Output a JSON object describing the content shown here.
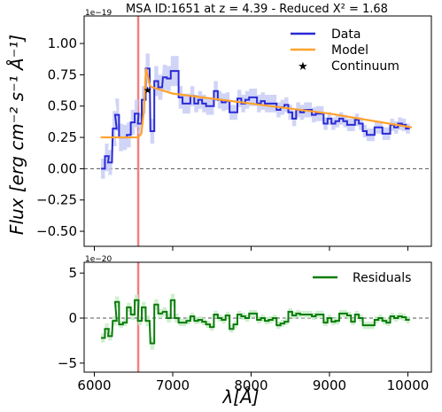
{
  "figure": {
    "title": "MSA ID:1651 at z = 4.39 - Reduced X² = 1.68",
    "xlabel": "λ[Å]",
    "top_ylabel": "Flux [erg cm⁻² s⁻¹ Å⁻¹]",
    "top_offset": "1e−19",
    "bottom_offset": "1e−20"
  },
  "colors": {
    "data": "#2a2ad6",
    "model": "#ffa22e",
    "residuals": "#0a7d0a",
    "line_marker": "#f08080",
    "zero": "#555555",
    "data_band": "#c8ccf5",
    "resid_band": "#c8ecc8"
  },
  "chart_data": [
    {
      "type": "line",
      "panel": "spectrum",
      "title": "MSA ID:1651 at z = 4.39 - Reduced X² = 1.68",
      "xlabel": "",
      "ylabel": "Flux [erg cm⁻² s⁻¹ Å⁻¹]",
      "xlim": [
        5870,
        10300
      ],
      "ylim": [
        -0.62,
        1.22
      ],
      "xticks": [
        6000,
        7000,
        8000,
        9000,
        10000
      ],
      "yticks": [
        -0.5,
        -0.25,
        0.0,
        0.25,
        0.5,
        0.75,
        1.0
      ],
      "ytick_labels": [
        "−0.50",
        "−0.25",
        "0.00",
        "0.25",
        "0.50",
        "0.75",
        "1.00"
      ],
      "vline_x": 6560,
      "hline_y": 0,
      "legend": {
        "placement": "top-right",
        "entries": [
          "Data",
          "Model",
          "Continuum"
        ]
      },
      "series": [
        {
          "name": "Data",
          "style": "step",
          "x": [
            6110,
            6160,
            6200,
            6260,
            6290,
            6340,
            6390,
            6440,
            6490,
            6540,
            6580,
            6630,
            6680,
            6740,
            6790,
            6840,
            6900,
            6950,
            7000,
            7050,
            7100,
            7150,
            7200,
            7250,
            7300,
            7350,
            7400,
            7450,
            7500,
            7550,
            7600,
            7650,
            7700,
            7750,
            7800,
            7850,
            7900,
            7950,
            8000,
            8050,
            8100,
            8150,
            8200,
            8250,
            8300,
            8350,
            8400,
            8450,
            8500,
            8550,
            8600,
            8650,
            8700,
            8750,
            8800,
            8850,
            8900,
            8950,
            9000,
            9050,
            9100,
            9150,
            9200,
            9250,
            9300,
            9350,
            9400,
            9450,
            9500,
            9550,
            9600,
            9650,
            9700,
            9750,
            9800,
            9850,
            9900,
            9950,
            10000
          ],
          "y": [
            0.0,
            0.1,
            0.05,
            0.32,
            0.43,
            0.25,
            0.25,
            0.27,
            0.37,
            0.44,
            0.36,
            0.55,
            0.8,
            0.3,
            0.7,
            0.65,
            0.73,
            0.72,
            0.78,
            0.78,
            0.57,
            0.52,
            0.52,
            0.58,
            0.52,
            0.55,
            0.52,
            0.5,
            0.5,
            0.62,
            0.55,
            0.53,
            0.54,
            0.45,
            0.45,
            0.56,
            0.52,
            0.55,
            0.57,
            0.57,
            0.52,
            0.54,
            0.52,
            0.52,
            0.52,
            0.47,
            0.49,
            0.51,
            0.45,
            0.4,
            0.47,
            0.45,
            0.47,
            0.47,
            0.43,
            0.44,
            0.44,
            0.36,
            0.4,
            0.36,
            0.38,
            0.4,
            0.38,
            0.35,
            0.35,
            0.39,
            0.36,
            0.3,
            0.27,
            0.27,
            0.33,
            0.33,
            0.28,
            0.28,
            0.35,
            0.33,
            0.36,
            0.35,
            0.32
          ],
          "y_lower": [
            -0.08,
            -0.02,
            -0.05,
            0.18,
            0.3,
            0.14,
            0.15,
            0.17,
            0.27,
            0.33,
            0.28,
            0.44,
            0.68,
            0.2,
            0.58,
            0.55,
            0.63,
            0.62,
            0.66,
            0.66,
            0.48,
            0.44,
            0.44,
            0.5,
            0.45,
            0.48,
            0.45,
            0.43,
            0.43,
            0.54,
            0.48,
            0.46,
            0.47,
            0.39,
            0.39,
            0.49,
            0.45,
            0.48,
            0.5,
            0.5,
            0.45,
            0.47,
            0.45,
            0.45,
            0.45,
            0.41,
            0.43,
            0.45,
            0.39,
            0.34,
            0.41,
            0.39,
            0.41,
            0.41,
            0.37,
            0.38,
            0.38,
            0.31,
            0.35,
            0.31,
            0.33,
            0.35,
            0.33,
            0.3,
            0.3,
            0.34,
            0.31,
            0.25,
            0.22,
            0.22,
            0.28,
            0.28,
            0.23,
            0.23,
            0.3,
            0.28,
            0.31,
            0.3,
            0.28
          ],
          "y_upper": [
            0.08,
            0.2,
            0.15,
            0.46,
            0.56,
            0.36,
            0.35,
            0.37,
            0.47,
            0.55,
            0.44,
            0.66,
            0.92,
            0.4,
            0.82,
            0.75,
            0.83,
            0.82,
            0.9,
            0.9,
            0.66,
            0.6,
            0.6,
            0.66,
            0.59,
            0.62,
            0.59,
            0.57,
            0.57,
            0.7,
            0.62,
            0.6,
            0.61,
            0.51,
            0.51,
            0.63,
            0.59,
            0.62,
            0.64,
            0.64,
            0.59,
            0.61,
            0.59,
            0.59,
            0.59,
            0.53,
            0.55,
            0.57,
            0.51,
            0.46,
            0.53,
            0.51,
            0.53,
            0.53,
            0.49,
            0.5,
            0.5,
            0.41,
            0.45,
            0.41,
            0.43,
            0.45,
            0.43,
            0.4,
            0.4,
            0.44,
            0.41,
            0.35,
            0.32,
            0.32,
            0.38,
            0.38,
            0.33,
            0.33,
            0.4,
            0.38,
            0.41,
            0.4,
            0.36
          ]
        },
        {
          "name": "Model",
          "style": "line",
          "x": [
            6080,
            6560,
            6600,
            6630,
            6660,
            6690,
            6710,
            6740,
            7000,
            8000,
            9000,
            10050
          ],
          "y": [
            0.25,
            0.25,
            0.28,
            0.45,
            0.8,
            0.72,
            0.66,
            0.65,
            0.6,
            0.52,
            0.44,
            0.33
          ]
        },
        {
          "name": "Continuum",
          "style": "marker",
          "x": [
            6680
          ],
          "y": [
            0.63
          ]
        }
      ]
    },
    {
      "type": "line",
      "panel": "residuals",
      "xlabel": "λ[Å]",
      "ylabel": "",
      "xlim": [
        5870,
        10300
      ],
      "ylim": [
        -6.0,
        6.2
      ],
      "xticks": [
        6000,
        7000,
        8000,
        9000,
        10000
      ],
      "yticks": [
        -5,
        0,
        5
      ],
      "ytick_labels": [
        "−5",
        "0",
        "5"
      ],
      "vline_x": 6560,
      "hline_y": 0,
      "legend": {
        "placement": "top-right",
        "entries": [
          "Residuals"
        ]
      },
      "series": [
        {
          "name": "Residuals",
          "style": "step",
          "x": [
            6110,
            6160,
            6200,
            6260,
            6290,
            6340,
            6390,
            6440,
            6490,
            6540,
            6580,
            6630,
            6680,
            6740,
            6790,
            6840,
            6900,
            6950,
            7000,
            7050,
            7100,
            7150,
            7200,
            7250,
            7300,
            7350,
            7400,
            7450,
            7500,
            7550,
            7600,
            7650,
            7700,
            7750,
            7800,
            7850,
            7900,
            7950,
            8000,
            8050,
            8100,
            8150,
            8200,
            8250,
            8300,
            8350,
            8400,
            8450,
            8500,
            8550,
            8600,
            8650,
            8700,
            8750,
            8800,
            8850,
            8900,
            8950,
            9000,
            9050,
            9100,
            9150,
            9200,
            9250,
            9300,
            9350,
            9400,
            9450,
            9500,
            9550,
            9600,
            9650,
            9700,
            9750,
            9800,
            9850,
            9900,
            9950,
            10000
          ],
          "y": [
            -2.2,
            -1.2,
            -2.0,
            -0.3,
            1.8,
            -0.7,
            -0.5,
            1.2,
            0.4,
            2.0,
            -0.3,
            1.2,
            -0.3,
            -2.8,
            1.5,
            0.5,
            0.7,
            0.0,
            2.0,
            0.0,
            -0.5,
            -0.5,
            -0.3,
            0.2,
            -0.3,
            -0.2,
            -0.4,
            -0.7,
            -1.0,
            0.4,
            0.0,
            -0.2,
            0.3,
            -1.2,
            -0.7,
            0.4,
            0.2,
            0.0,
            0.5,
            0.5,
            -0.2,
            0.0,
            -0.3,
            -0.2,
            0.0,
            -0.8,
            -0.6,
            -0.4,
            0.7,
            0.3,
            0.5,
            0.4,
            0.4,
            0.4,
            0.2,
            0.4,
            0.4,
            -0.5,
            0.0,
            -0.4,
            -0.3,
            0.5,
            0.5,
            0.3,
            -0.4,
            0.4,
            0.0,
            -0.8,
            -0.8,
            -0.8,
            -0.2,
            0.0,
            -0.3,
            -0.5,
            0.2,
            0.0,
            0.2,
            0.1,
            -0.2
          ],
          "y_lower": [
            -2.7,
            -1.8,
            -2.5,
            -0.8,
            1.2,
            -1.1,
            -0.9,
            0.7,
            -0.2,
            1.4,
            -0.8,
            0.6,
            -0.9,
            -3.5,
            0.9,
            0.0,
            0.2,
            -0.5,
            1.3,
            -0.5,
            -0.9,
            -0.9,
            -0.7,
            -0.2,
            -0.7,
            -0.6,
            -0.8,
            -1.1,
            -1.4,
            0.0,
            -0.4,
            -0.6,
            -0.1,
            -1.6,
            -1.1,
            0.0,
            -0.2,
            -0.4,
            0.1,
            0.1,
            -0.6,
            -0.4,
            -0.7,
            -0.6,
            -0.4,
            -1.2,
            -1.0,
            -0.8,
            0.3,
            -0.1,
            0.1,
            0.0,
            0.0,
            0.0,
            -0.2,
            0.0,
            0.0,
            -0.9,
            -0.4,
            -0.8,
            -0.7,
            0.1,
            0.1,
            -0.1,
            -0.8,
            0.0,
            -0.4,
            -1.2,
            -1.2,
            -1.2,
            -0.6,
            -0.4,
            -0.7,
            -0.9,
            -0.2,
            -0.4,
            -0.2,
            -0.3,
            -0.6
          ],
          "y_upper": [
            -1.7,
            -0.6,
            -1.5,
            0.2,
            2.4,
            -0.3,
            -0.1,
            1.7,
            1.0,
            2.6,
            0.2,
            1.8,
            0.3,
            -2.1,
            2.1,
            1.0,
            1.2,
            0.5,
            2.7,
            0.5,
            -0.1,
            -0.1,
            0.1,
            0.6,
            0.1,
            0.2,
            0.0,
            -0.3,
            -0.6,
            0.8,
            0.4,
            0.2,
            0.7,
            -0.8,
            -0.3,
            0.8,
            0.6,
            0.4,
            0.9,
            0.9,
            0.2,
            0.4,
            0.1,
            0.2,
            0.4,
            -0.4,
            -0.2,
            0.0,
            1.1,
            0.7,
            0.9,
            0.8,
            0.8,
            0.8,
            0.6,
            0.8,
            0.8,
            -0.1,
            0.4,
            0.0,
            0.1,
            0.9,
            0.9,
            0.7,
            0.0,
            0.8,
            0.4,
            -0.4,
            -0.4,
            -0.4,
            0.2,
            0.4,
            0.1,
            -0.1,
            0.6,
            0.4,
            0.6,
            0.5,
            0.2
          ]
        }
      ]
    }
  ]
}
